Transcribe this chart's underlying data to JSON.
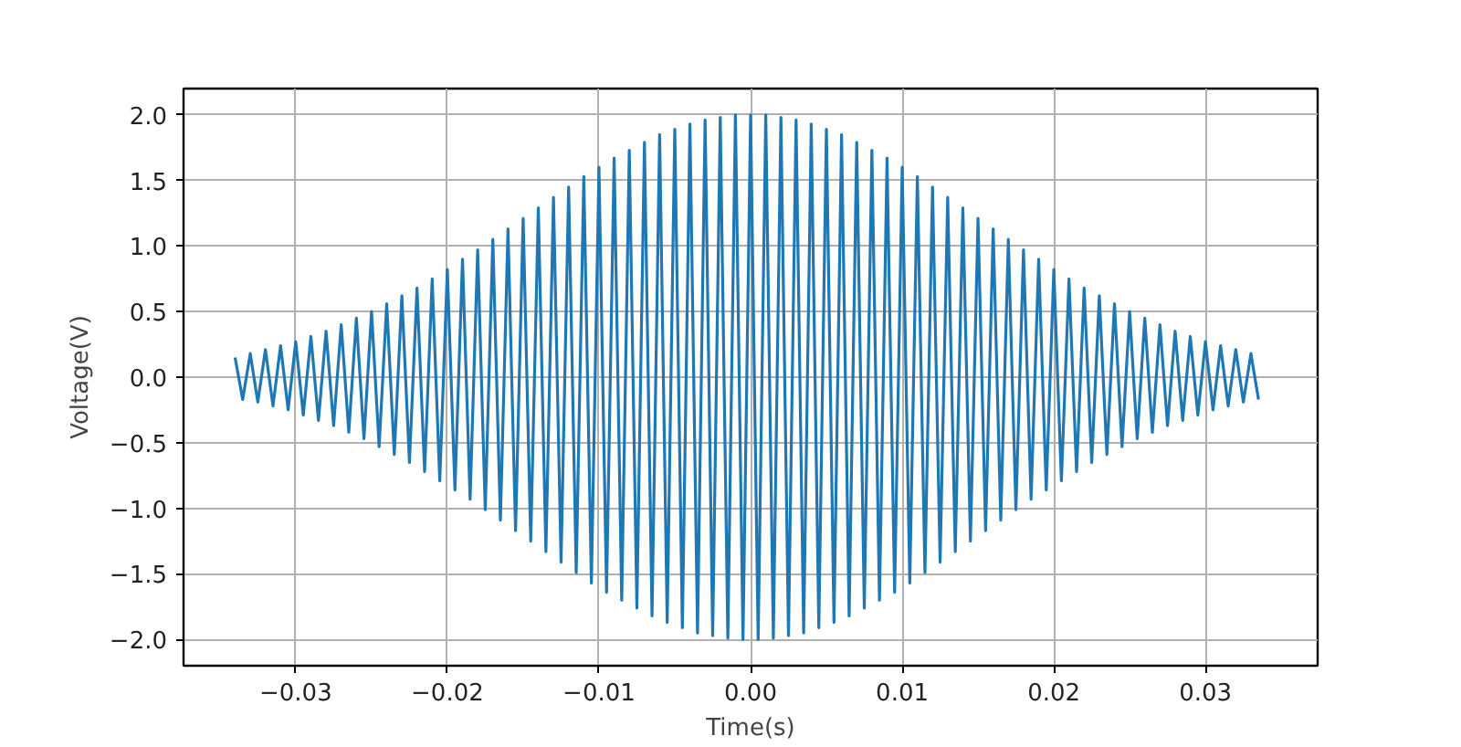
{
  "chart_data": {
    "type": "line",
    "xlabel": "Time(s)",
    "ylabel": "Voltage(V)",
    "xlim": [
      -0.0374,
      0.0374
    ],
    "ylim": [
      -2.2,
      2.2
    ],
    "xticks": [
      {
        "value": -0.03,
        "label": "−0.03"
      },
      {
        "value": -0.02,
        "label": "−0.02"
      },
      {
        "value": -0.01,
        "label": "−0.01"
      },
      {
        "value": 0,
        "label": "0.00"
      },
      0.01,
      0.02,
      0.03
    ],
    "yticks": [
      {
        "value": -2,
        "label": "−2.0"
      },
      {
        "value": -1.5,
        "label": "−1.5"
      },
      {
        "value": -1,
        "label": "−1.0"
      },
      {
        "value": -0.5,
        "label": "−0.5"
      },
      {
        "value": 0,
        "label": "0.0"
      },
      0.5,
      {
        "value": 1,
        "label": "1.0"
      },
      1.5,
      {
        "value": 2,
        "label": "2.0"
      }
    ],
    "grid": true,
    "line_style": "solid",
    "marker": "none",
    "series": [
      {
        "color": "#1f77b4",
        "x": [
          -0.034,
          -0.0335,
          -0.033,
          -0.0325,
          -0.032,
          -0.0315,
          -0.031,
          -0.0305,
          -0.03,
          -0.0295,
          -0.029,
          -0.0285,
          -0.028,
          -0.0275,
          -0.027,
          -0.0265,
          -0.026,
          -0.0255,
          -0.025,
          -0.0245,
          -0.024,
          -0.0235,
          -0.023,
          -0.0225,
          -0.022,
          -0.0215,
          -0.021,
          -0.0205,
          -0.02,
          -0.0195,
          -0.019,
          -0.0185,
          -0.018,
          -0.0175,
          -0.017,
          -0.0165,
          -0.016,
          -0.0155,
          -0.015,
          -0.0145,
          -0.014,
          -0.0135,
          -0.013,
          -0.0125,
          -0.012,
          -0.0115,
          -0.011,
          -0.0105,
          -0.01,
          -0.0095,
          -0.009,
          -0.0085,
          -0.008,
          -0.0075,
          -0.007,
          -0.0065,
          -0.006,
          -0.0055,
          -0.005,
          -0.0045,
          -0.004,
          -0.0035,
          -0.003,
          -0.0025,
          -0.002,
          -0.0015,
          -0.001,
          -0.0005,
          0,
          0.0005,
          0.001,
          0.0015,
          0.002,
          0.0025,
          0.003,
          0.0035,
          0.004,
          0.0045,
          0.005,
          0.0055,
          0.006,
          0.0065,
          0.007,
          0.0075,
          0.008,
          0.0085,
          0.009,
          0.0095,
          0.01,
          0.0105,
          0.011,
          0.0115,
          0.012,
          0.0125,
          0.013,
          0.0135,
          0.014,
          0.0145,
          0.015,
          0.0155,
          0.016,
          0.0165,
          0.017,
          0.0175,
          0.018,
          0.0185,
          0.019,
          0.0195,
          0.02,
          0.0205,
          0.021,
          0.0215,
          0.022,
          0.0225,
          0.023,
          0.0235,
          0.024,
          0.0245,
          0.025,
          0.0255,
          0.026,
          0.0265,
          0.027,
          0.0275,
          0.028,
          0.0285,
          0.029,
          0.0295,
          0.03,
          0.0305,
          0.031,
          0.0315,
          0.032,
          0.0325,
          0.033,
          0.0335
        ],
        "values": [
          0.15,
          -0.17,
          0.18,
          -0.19,
          0.21,
          -0.22,
          0.24,
          -0.25,
          0.27,
          -0.29,
          0.31,
          -0.33,
          0.35,
          -0.37,
          0.4,
          -0.42,
          0.45,
          -0.47,
          0.5,
          -0.53,
          0.56,
          -0.59,
          0.62,
          -0.65,
          0.68,
          -0.72,
          0.75,
          -0.79,
          0.82,
          -0.86,
          0.9,
          -0.93,
          0.97,
          -1.01,
          1.05,
          -1.09,
          1.13,
          -1.17,
          1.21,
          -1.25,
          1.29,
          -1.33,
          1.37,
          -1.41,
          1.45,
          -1.49,
          1.53,
          -1.57,
          1.6,
          -1.64,
          1.67,
          -1.7,
          1.73,
          -1.76,
          1.79,
          -1.82,
          1.85,
          -1.87,
          1.89,
          -1.91,
          1.93,
          -1.95,
          1.96,
          -1.97,
          1.98,
          -1.99,
          2.0,
          -2.0,
          2.0,
          -2.0,
          2.0,
          -1.99,
          1.98,
          -1.97,
          1.96,
          -1.95,
          1.93,
          -1.91,
          1.89,
          -1.87,
          1.85,
          -1.82,
          1.79,
          -1.76,
          1.73,
          -1.7,
          1.67,
          -1.64,
          1.6,
          -1.57,
          1.53,
          -1.49,
          1.45,
          -1.41,
          1.37,
          -1.33,
          1.29,
          -1.25,
          1.21,
          -1.17,
          1.13,
          -1.09,
          1.05,
          -1.01,
          0.97,
          -0.93,
          0.9,
          -0.86,
          0.82,
          -0.79,
          0.75,
          -0.72,
          0.68,
          -0.65,
          0.62,
          -0.59,
          0.56,
          -0.53,
          0.5,
          -0.47,
          0.45,
          -0.42,
          0.4,
          -0.37,
          0.35,
          -0.33,
          0.31,
          -0.29,
          0.27,
          -0.25,
          0.24,
          -0.22,
          0.21,
          -0.19,
          0.18,
          -0.17
        ]
      }
    ]
  }
}
